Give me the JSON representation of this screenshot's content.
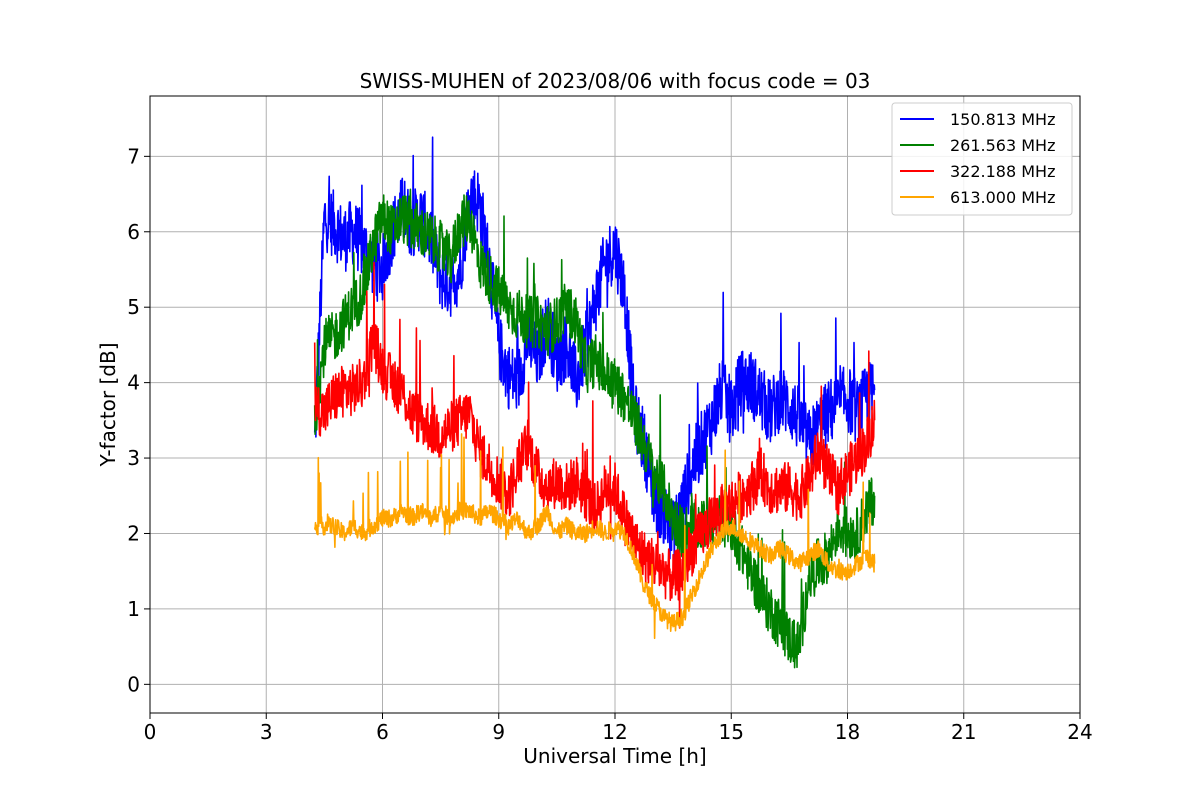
{
  "chart_data": {
    "type": "line",
    "title": "SWISS-MUHEN of 2023/08/06 with focus code = 03",
    "xlabel": "Universal Time [h]",
    "ylabel": "Y-factor [dB]",
    "xlim": [
      0,
      24
    ],
    "ylim": [
      -0.38,
      7.8
    ],
    "xticks": [
      0,
      3,
      6,
      9,
      12,
      15,
      18,
      21,
      24
    ],
    "yticks": [
      0,
      1,
      2,
      3,
      4,
      5,
      6,
      7
    ],
    "grid": true,
    "legend_position": "top-right",
    "series": [
      {
        "name": "150.813 MHz",
        "color": "#0000ff",
        "x": [
          4.25,
          4.5,
          4.75,
          5.0,
          5.25,
          5.5,
          5.75,
          6.0,
          6.25,
          6.5,
          6.75,
          7.0,
          7.25,
          7.5,
          7.75,
          8.0,
          8.25,
          8.5,
          8.75,
          9.0,
          9.25,
          9.5,
          9.75,
          10.0,
          10.25,
          10.5,
          10.75,
          11.0,
          11.25,
          11.5,
          11.75,
          12.0,
          12.25,
          12.5,
          12.75,
          13.0,
          13.25,
          13.5,
          13.75,
          14.0,
          14.25,
          14.5,
          14.75,
          15.0,
          15.25,
          15.5,
          15.75,
          16.0,
          16.25,
          16.5,
          16.75,
          17.0,
          17.25,
          17.5,
          17.75,
          18.0,
          18.25,
          18.5,
          18.7
        ],
        "y": [
          3.2,
          6.2,
          6.1,
          5.9,
          6.0,
          5.8,
          5.6,
          5.5,
          6.0,
          6.3,
          6.1,
          6.2,
          5.9,
          5.4,
          5.3,
          5.5,
          6.5,
          6.4,
          5.6,
          4.5,
          4.1,
          4.0,
          4.6,
          4.3,
          4.8,
          4.3,
          4.5,
          4.0,
          4.5,
          5.1,
          5.6,
          5.8,
          5.2,
          3.6,
          3.2,
          2.5,
          2.3,
          2.0,
          2.4,
          2.9,
          3.2,
          3.5,
          3.9,
          3.6,
          4.0,
          4.0,
          3.8,
          3.6,
          3.8,
          3.7,
          3.5,
          3.2,
          3.4,
          3.6,
          3.7,
          3.8,
          3.6,
          3.8,
          3.9
        ]
      },
      {
        "name": "261.563 MHz",
        "color": "#008000",
        "x": [
          4.25,
          4.5,
          4.75,
          5.0,
          5.25,
          5.5,
          5.75,
          6.0,
          6.25,
          6.5,
          6.75,
          7.0,
          7.25,
          7.5,
          7.75,
          8.0,
          8.25,
          8.5,
          8.75,
          9.0,
          9.25,
          9.5,
          9.75,
          10.0,
          10.25,
          10.5,
          10.75,
          11.0,
          11.25,
          11.5,
          11.75,
          12.0,
          12.25,
          12.5,
          12.75,
          13.0,
          13.25,
          13.5,
          13.75,
          14.0,
          14.25,
          14.5,
          14.75,
          15.0,
          15.25,
          15.5,
          15.75,
          16.0,
          16.25,
          16.5,
          16.75,
          17.0,
          17.25,
          17.5,
          17.75,
          18.0,
          18.25,
          18.5,
          18.7
        ],
        "y": [
          3.5,
          4.5,
          4.6,
          4.8,
          5.0,
          5.2,
          5.8,
          6.2,
          6.0,
          6.2,
          6.1,
          6.0,
          5.9,
          5.8,
          5.6,
          6.1,
          6.2,
          5.6,
          5.4,
          5.2,
          5.0,
          4.9,
          4.8,
          4.8,
          4.7,
          4.8,
          5.0,
          4.8,
          4.2,
          4.3,
          4.1,
          4.0,
          3.8,
          3.5,
          3.2,
          2.8,
          2.6,
          2.2,
          2.0,
          2.1,
          2.1,
          2.2,
          2.2,
          2.1,
          1.8,
          1.5,
          1.2,
          1.0,
          0.8,
          0.6,
          0.5,
          1.4,
          1.6,
          1.7,
          2.1,
          2.0,
          2.0,
          2.3,
          2.5
        ]
      },
      {
        "name": "322.188 MHz",
        "color": "#ff0000",
        "x": [
          4.25,
          4.5,
          4.75,
          5.0,
          5.25,
          5.5,
          5.75,
          6.0,
          6.25,
          6.5,
          6.75,
          7.0,
          7.25,
          7.5,
          7.75,
          8.0,
          8.25,
          8.5,
          8.75,
          9.0,
          9.25,
          9.5,
          9.75,
          10.0,
          10.25,
          10.5,
          10.75,
          11.0,
          11.25,
          11.5,
          11.75,
          12.0,
          12.25,
          12.5,
          12.75,
          13.0,
          13.25,
          13.5,
          13.75,
          14.0,
          14.25,
          14.5,
          14.75,
          15.0,
          15.25,
          15.5,
          15.75,
          16.0,
          16.25,
          16.5,
          16.75,
          17.0,
          17.25,
          17.5,
          17.75,
          18.0,
          18.25,
          18.5,
          18.7
        ],
        "y": [
          3.7,
          3.6,
          3.8,
          3.9,
          3.9,
          4.0,
          4.6,
          4.2,
          4.0,
          3.9,
          3.6,
          3.5,
          3.4,
          3.3,
          3.4,
          3.5,
          3.6,
          3.1,
          2.9,
          2.7,
          2.5,
          2.9,
          3.2,
          2.8,
          2.6,
          2.7,
          2.6,
          2.7,
          2.5,
          2.3,
          2.6,
          2.6,
          2.2,
          1.9,
          1.7,
          1.6,
          1.5,
          1.4,
          1.5,
          1.8,
          2.0,
          2.2,
          2.3,
          2.4,
          2.5,
          2.6,
          2.8,
          2.6,
          2.6,
          2.6,
          2.5,
          2.7,
          3.1,
          2.8,
          2.6,
          2.8,
          3.0,
          3.2,
          3.5
        ]
      },
      {
        "name": "613.000 MHz",
        "color": "#ffa500",
        "x": [
          4.25,
          4.5,
          4.75,
          5.0,
          5.25,
          5.5,
          5.75,
          6.0,
          6.25,
          6.5,
          6.75,
          7.0,
          7.25,
          7.5,
          7.75,
          8.0,
          8.25,
          8.5,
          8.75,
          9.0,
          9.25,
          9.5,
          9.75,
          10.0,
          10.25,
          10.5,
          10.75,
          11.0,
          11.25,
          11.5,
          11.75,
          12.0,
          12.25,
          12.5,
          12.75,
          13.0,
          13.25,
          13.5,
          13.75,
          14.0,
          14.25,
          14.5,
          14.75,
          15.0,
          15.25,
          15.5,
          15.75,
          16.0,
          16.25,
          16.5,
          16.75,
          17.0,
          17.25,
          17.5,
          17.75,
          18.0,
          18.25,
          18.5,
          18.7
        ],
        "y": [
          2.1,
          2.1,
          2.1,
          2.0,
          2.1,
          2.0,
          2.1,
          2.2,
          2.2,
          2.3,
          2.2,
          2.3,
          2.2,
          2.3,
          2.2,
          2.3,
          2.3,
          2.2,
          2.3,
          2.2,
          2.1,
          2.2,
          2.0,
          2.1,
          2.3,
          2.0,
          2.1,
          2.0,
          2.0,
          2.1,
          2.0,
          2.1,
          2.0,
          1.7,
          1.3,
          1.1,
          0.9,
          0.8,
          0.9,
          1.2,
          1.5,
          1.8,
          2.0,
          2.1,
          2.0,
          1.9,
          1.8,
          1.7,
          1.8,
          1.7,
          1.6,
          1.7,
          1.8,
          1.6,
          1.5,
          1.5,
          1.6,
          1.7,
          1.6
        ]
      }
    ]
  }
}
